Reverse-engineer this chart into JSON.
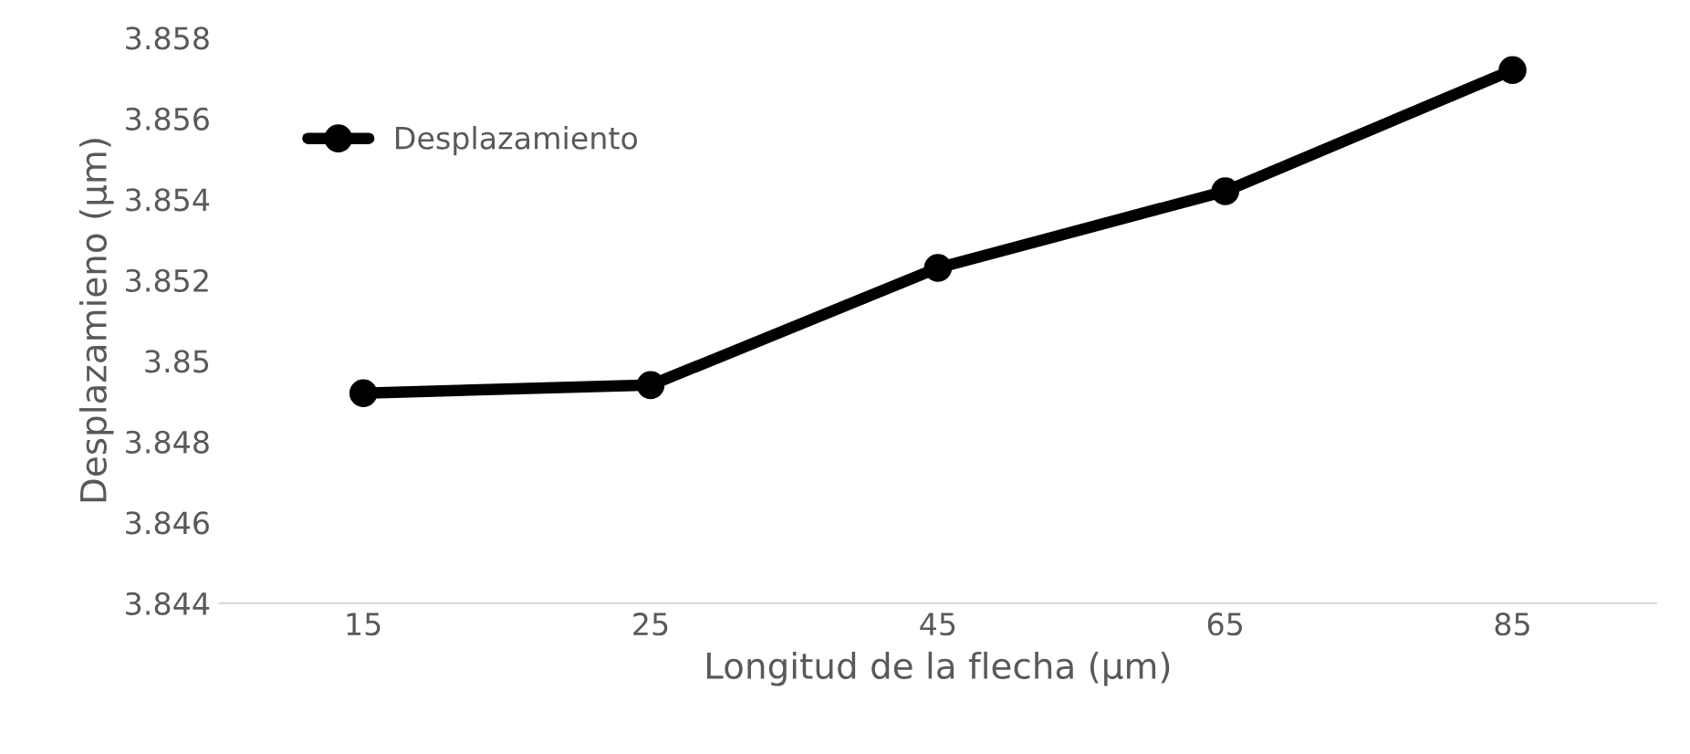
{
  "chart_data": {
    "type": "line",
    "xlabel": "Longitud de la flecha (µm)",
    "ylabel": "Desplazamieno (µm)",
    "categories": [
      "15",
      "25",
      "45",
      "65",
      "85"
    ],
    "series": [
      {
        "name": "Desplazamiento",
        "color": "#000000",
        "values": [
          3.8492,
          3.8494,
          3.8523,
          3.8542,
          3.8572
        ]
      }
    ],
    "ylim": [
      3.844,
      3.858
    ],
    "yticks": [
      3.844,
      3.846,
      3.848,
      3.85,
      3.852,
      3.854,
      3.856,
      3.858
    ],
    "marker": "circle",
    "line_style": "solid",
    "legend": "top left",
    "grid": false
  }
}
